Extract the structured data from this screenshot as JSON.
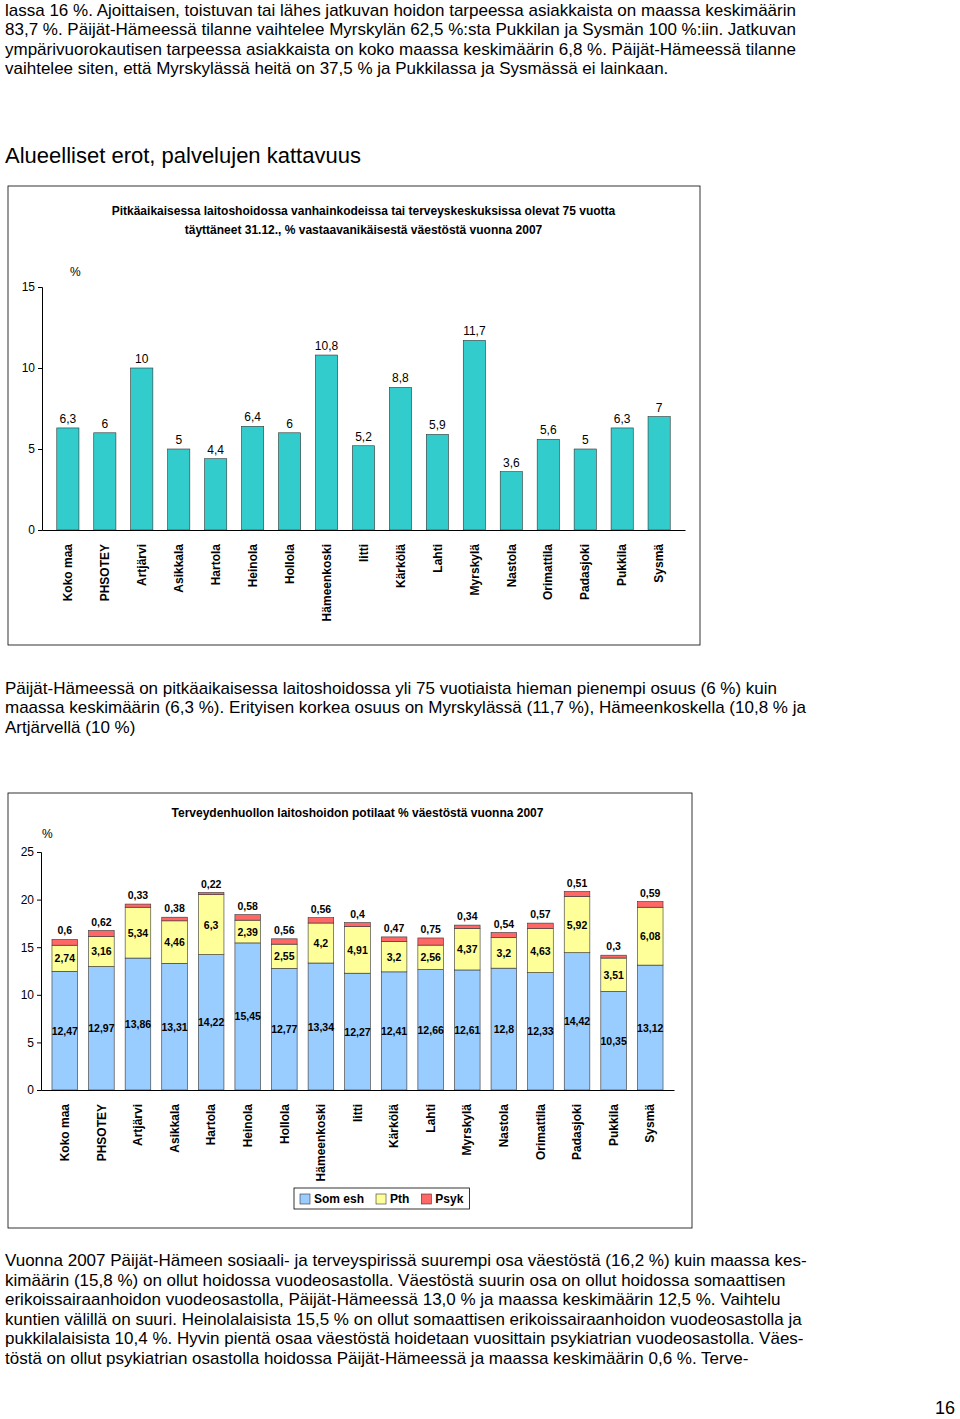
{
  "page": {
    "top_lines": [
      "lassa 16 %. Ajoittaisen, toistuvan tai lähes jatkuvan hoidon tarpeessa asiakkaista on maassa keskimäärin",
      "83,7 %. Päijät-Hämeessä tilanne vaihtelee Myrskylän 62,5 %:sta Pukkilan ja Sysmän 100 %:iin. Jatkuvan",
      "ympärivuorokautisen tarpeessa asiakkaista on koko maassa keskimäärin 6,8 %. Päijät-Hämeessä tilanne",
      "vaihtelee siten, että Myrskylässä heitä on 37,5 % ja Pukkilassa ja Sysmässä ei lainkaan."
    ],
    "heading": "Alueelliset erot, palvelujen kattavuus",
    "middle_lines": [
      "Päijät-Hämeessä on pitkäaikaisessa laitoshoidossa yli 75 vuotiaista hieman pienempi osuus (6 %) kuin",
      "maassa keskimäärin (6,3 %). Erityisen korkea osuus on Myrskylässä (11,7 %), Hämeenkoskella (10,8 % ja",
      "Artjärvellä (10 %)"
    ],
    "bottom_lines": [
      "Vuonna 2007 Päijät-Hämeen sosiaali- ja terveyspirissä suurempi osa väestöstä (16,2 %) kuin maassa kes-",
      "kimäärin (15,8 %) on ollut hoidossa vuodeosastolla. Väestöstä suurin osa on ollut hoidossa somaattisen",
      "erikoissairaanhoidon vuodeosastolla, Päijät-Hämeessä 13,0 % ja maassa keskimäärin 12,5 %. Vaihtelu",
      "kuntien välillä on suuri. Heinolalaisista 15,5 % on ollut somaattisen erikoissairaanhoidon vuodeosastolla ja",
      "pukkilalaisista 10,4 %. Hyvin pientä osaa väestöstä hoidetaan vuosittain psykiatrian vuodeosastolla. Väes-",
      "töstä on ollut psykiatrian osastolla hoidossa Päijät-Hämeessä ja maassa keskimäärin 0,6 %. Terve-"
    ],
    "page_number": "16"
  },
  "chart_data": [
    {
      "type": "bar",
      "title": "Pitkäaikaisessa laitoshoidossa vanhainkodeissa tai terveyskeskuksissa olevat 75 vuotta täyttäneet 31.12., % vastaavanikäisestä väestöstä vuonna 2007",
      "y_label": "%",
      "categories": [
        "Koko maa",
        "PHSOTEY",
        "Artjärvi",
        "Asikkala",
        "Hartola",
        "Heinola",
        "Hollola",
        "Hämeenkoski",
        "Iitti",
        "Kärkölä",
        "Lahti",
        "Myrskylä",
        "Nastola",
        "Orimattila",
        "Padasjoki",
        "Pukkila",
        "Sysmä"
      ],
      "values": [
        6.3,
        6,
        10,
        5,
        4.4,
        6.4,
        6,
        10.8,
        5.2,
        8.8,
        5.9,
        11.7,
        3.6,
        5.6,
        5,
        6.3,
        7
      ],
      "value_labels": [
        "6,3",
        "6",
        "10",
        "5",
        "4,4",
        "6,4",
        "6",
        "10,8",
        "5,2",
        "8,8",
        "5,9",
        "11,7",
        "3,6",
        "5,6",
        "5",
        "6,3",
        "7"
      ],
      "color": "#33cccc",
      "ylim": [
        0,
        15
      ],
      "yticks": [
        0,
        5,
        10,
        15
      ],
      "grid": false,
      "data_labels": true
    },
    {
      "type": "bar",
      "stacked": true,
      "title": "Terveydenhuollon laitoshoidon potilaat % väestöstä vuonna 2007",
      "y_label": "%",
      "categories": [
        "Koko maa",
        "PHSOTEY",
        "Artjärvi",
        "Asikkala",
        "Hartola",
        "Heinola",
        "Hollola",
        "Hämeenkoski",
        "Iitti",
        "Kärkölä",
        "Lahti",
        "Myrskylä",
        "Nastola",
        "Orimattila",
        "Padasjoki",
        "Pukkila",
        "Sysmä"
      ],
      "series": [
        {
          "name": "Som esh",
          "color": "#99ccff",
          "values": [
            12.47,
            12.97,
            13.86,
            13.31,
            14.22,
            15.45,
            12.77,
            13.34,
            12.27,
            12.41,
            12.66,
            12.61,
            12.8,
            12.33,
            14.42,
            10.35,
            13.12
          ],
          "value_labels": [
            "12,47",
            "12,97",
            "13,86",
            "13,31",
            "14,22",
            "15,45",
            "12,77",
            "13,34",
            "12,27",
            "12,41",
            "12,66",
            "12,61",
            "12,8",
            "12,33",
            "14,42",
            "10,35",
            "13,12"
          ]
        },
        {
          "name": "Pth",
          "color": "#ffff99",
          "values": [
            2.74,
            3.16,
            5.34,
            4.46,
            6.3,
            2.39,
            2.55,
            4.2,
            4.91,
            3.2,
            2.56,
            4.37,
            3.2,
            4.63,
            5.92,
            3.51,
            6.08
          ],
          "value_labels": [
            "2,74",
            "3,16",
            "5,34",
            "4,46",
            "6,3",
            "2,39",
            "2,55",
            "4,2",
            "4,91",
            "3,2",
            "2,56",
            "4,37",
            "3,2",
            "4,63",
            "5,92",
            "3,51",
            "6,08"
          ]
        },
        {
          "name": "Psyk",
          "color": "#ff6666",
          "values": [
            0.6,
            0.62,
            0.33,
            0.38,
            0.22,
            0.58,
            0.56,
            0.56,
            0.4,
            0.47,
            0.75,
            0.34,
            0.54,
            0.57,
            0.51,
            0.3,
            0.59
          ],
          "value_labels": [
            "0,6",
            "0,62",
            "0,33",
            "0,38",
            "0,22",
            "0,58",
            "0,56",
            "0,56",
            "0,4",
            "0,47",
            "0,75",
            "0,34",
            "0,54",
            "0,57",
            "0,51",
            "0,3",
            "0,59"
          ]
        }
      ],
      "ylim": [
        0,
        25
      ],
      "yticks": [
        0,
        5,
        10,
        15,
        20,
        25
      ],
      "grid": false,
      "data_labels": true,
      "legend": "bottom"
    }
  ]
}
